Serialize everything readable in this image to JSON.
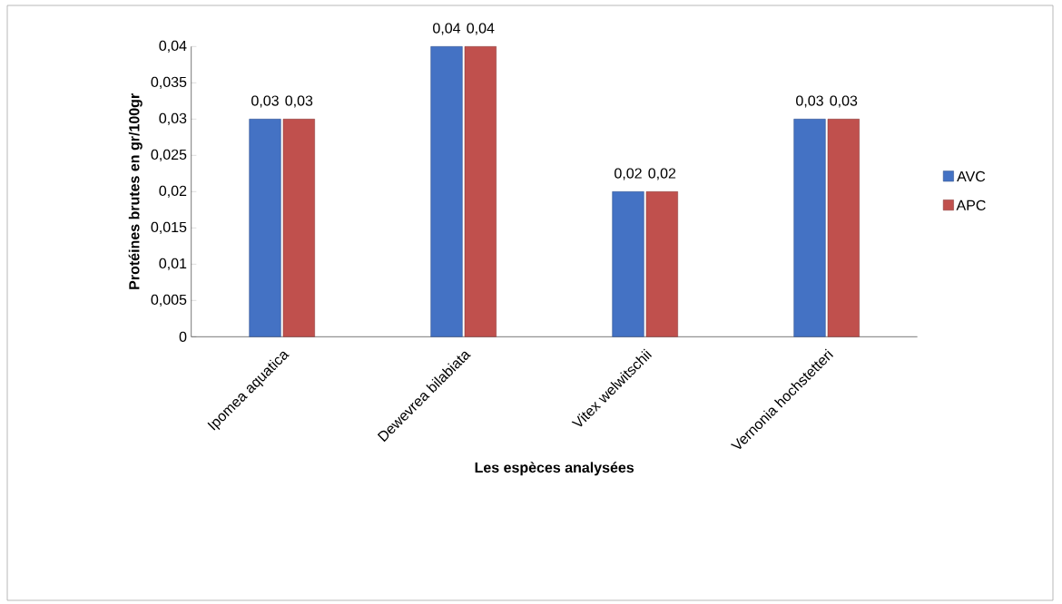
{
  "chart_data": {
    "type": "bar",
    "xlabel": "Les espèces analysées",
    "ylabel": "Protéines brutes en gr/100gr",
    "categories": [
      "Ipomea aquatica",
      "Dewevrea bilabiata",
      "Vitex welwitschii",
      "Vernonia hochstetteri"
    ],
    "series": [
      {
        "name": "AVC",
        "color": "#4472c4",
        "values": [
          0.03,
          0.04,
          0.02,
          0.03
        ],
        "value_labels": [
          "0,03",
          "0,04",
          "0,02",
          "0,03"
        ]
      },
      {
        "name": "APC",
        "color": "#c0504d",
        "values": [
          0.03,
          0.04,
          0.02,
          0.03
        ],
        "value_labels": [
          "0,03",
          "0,04",
          "0,02",
          "0,03"
        ]
      }
    ],
    "ylim": [
      0,
      0.04
    ],
    "yticks": [
      {
        "value": 0,
        "label": "0"
      },
      {
        "value": 0.005,
        "label": "0,005"
      },
      {
        "value": 0.01,
        "label": "0,01"
      },
      {
        "value": 0.015,
        "label": "0,015"
      },
      {
        "value": 0.02,
        "label": "0,02"
      },
      {
        "value": 0.025,
        "label": "0,025"
      },
      {
        "value": 0.03,
        "label": "0,03"
      },
      {
        "value": 0.035,
        "label": "0,035"
      },
      {
        "value": 0.04,
        "label": "0,04"
      }
    ],
    "legend": "right",
    "grid": false
  }
}
